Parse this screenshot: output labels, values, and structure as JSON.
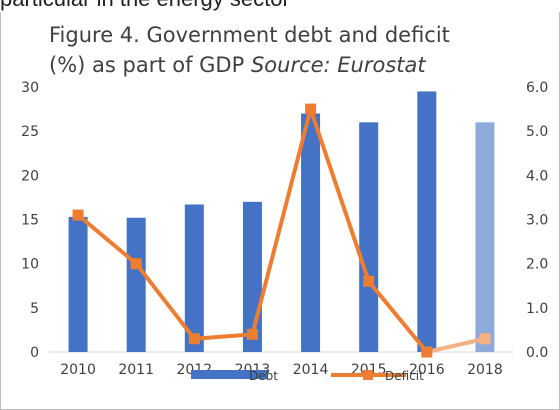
{
  "header_fragment": "particular in the energy sector",
  "chart_data": {
    "type": "bar+line",
    "title_line1": "Figure 4. Government debt and deficit",
    "title_line2": "(%) as part of GDP ",
    "title_source": "Source: Eurostat",
    "categories": [
      "2010",
      "2011",
      "2012",
      "2013",
      "2014",
      "2015",
      "2016",
      "2018"
    ],
    "left_ylim": [
      0,
      30
    ],
    "left_ticks": [
      "0",
      "5",
      "10",
      "15",
      "20",
      "25",
      "30"
    ],
    "right_ylim": [
      0,
      6
    ],
    "right_ticks": [
      "0.0",
      "1.0",
      "2.0",
      "3.0",
      "4.0",
      "5.0",
      "6.0"
    ],
    "series": [
      {
        "name": "Debt",
        "axis": "left",
        "type": "bar",
        "values": [
          15.3,
          15.2,
          16.7,
          17.0,
          27.0,
          26.0,
          29.5,
          26.0
        ],
        "color": "#4472c4",
        "projected_color": "#8eaadb"
      },
      {
        "name": "Deficit",
        "axis": "right",
        "type": "line",
        "values": [
          3.1,
          2.0,
          0.3,
          0.4,
          5.5,
          1.6,
          0.0,
          0.3
        ],
        "color": "#ed7d31",
        "projected_color": "#f4b183"
      }
    ],
    "projected_from_index": 6,
    "grid": false,
    "legend_position": "bottom"
  }
}
